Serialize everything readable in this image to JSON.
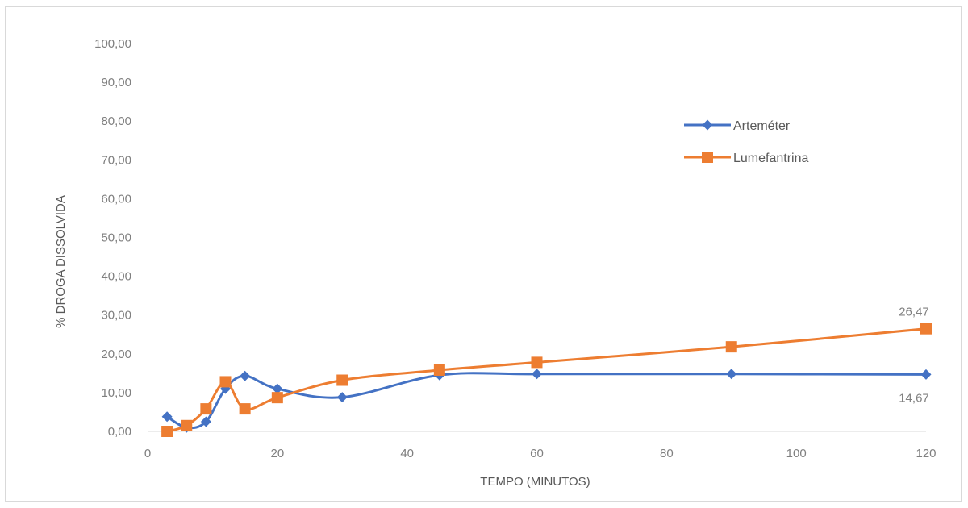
{
  "chart_data": {
    "type": "line",
    "title": "",
    "xlabel": "TEMPO (MINUTOS)",
    "ylabel": "% DROGA DISSOLVIDA",
    "xlim": [
      0,
      120
    ],
    "ylim": [
      0,
      100
    ],
    "x_ticks": [
      0,
      20,
      40,
      60,
      80,
      100,
      120
    ],
    "x_tick_labels": [
      "0",
      "20",
      "40",
      "60",
      "80",
      "100",
      "120"
    ],
    "y_ticks": [
      0,
      10,
      20,
      30,
      40,
      50,
      60,
      70,
      80,
      90,
      100
    ],
    "y_tick_labels": [
      "0,00",
      "10,00",
      "20,00",
      "30,00",
      "40,00",
      "50,00",
      "60,00",
      "70,00",
      "80,00",
      "90,00",
      "100,00"
    ],
    "grid": false,
    "legend_position": "right",
    "series": [
      {
        "name": "Arteméter",
        "color": "#4472c4",
        "marker": "diamond",
        "x": [
          3,
          6,
          9,
          12,
          15,
          20,
          30,
          45,
          60,
          90,
          120
        ],
        "y": [
          3.8,
          1.0,
          2.5,
          11.0,
          14.3,
          11.0,
          8.8,
          14.5,
          14.8,
          14.8,
          14.67
        ],
        "end_label": "14,67"
      },
      {
        "name": "Lumefantrina",
        "color": "#ed7d31",
        "marker": "square",
        "x": [
          3,
          6,
          9,
          12,
          15,
          20,
          30,
          45,
          60,
          90,
          120
        ],
        "y": [
          0.0,
          1.5,
          5.8,
          12.8,
          5.8,
          8.7,
          13.2,
          15.8,
          17.8,
          21.8,
          26.47
        ],
        "end_label": "26,47"
      }
    ]
  }
}
